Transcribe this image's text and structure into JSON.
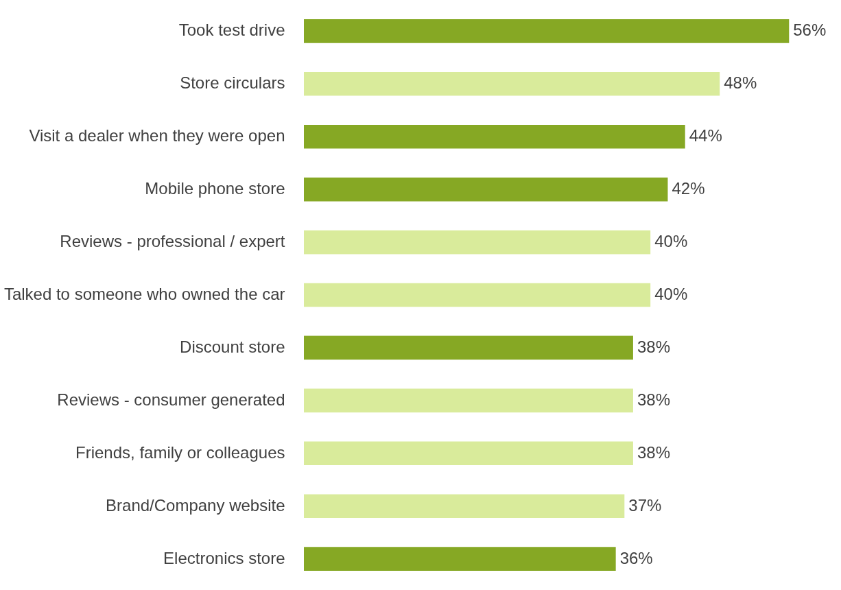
{
  "chart_data": {
    "type": "bar",
    "orientation": "horizontal",
    "categories": [
      "Took test drive",
      "Store circulars",
      "Visit a dealer when they were open",
      "Mobile phone store",
      "Reviews - professional / expert",
      "Talked to someone who owned the car",
      "Discount store",
      "Reviews - consumer generated",
      "Friends, family or colleagues",
      "Brand/Company website",
      "Electronics store"
    ],
    "values": [
      56,
      48,
      44,
      42,
      40,
      40,
      38,
      38,
      38,
      37,
      36
    ],
    "colors": [
      "#86a824",
      "#d9eb9b",
      "#86a824",
      "#86a824",
      "#d9eb9b",
      "#d9eb9b",
      "#86a824",
      "#d9eb9b",
      "#d9eb9b",
      "#d9eb9b",
      "#86a824"
    ],
    "value_labels": [
      "56%",
      "48%",
      "44%",
      "42%",
      "40%",
      "40%",
      "38%",
      "38%",
      "38%",
      "37%",
      "36%"
    ],
    "grid": false
  }
}
